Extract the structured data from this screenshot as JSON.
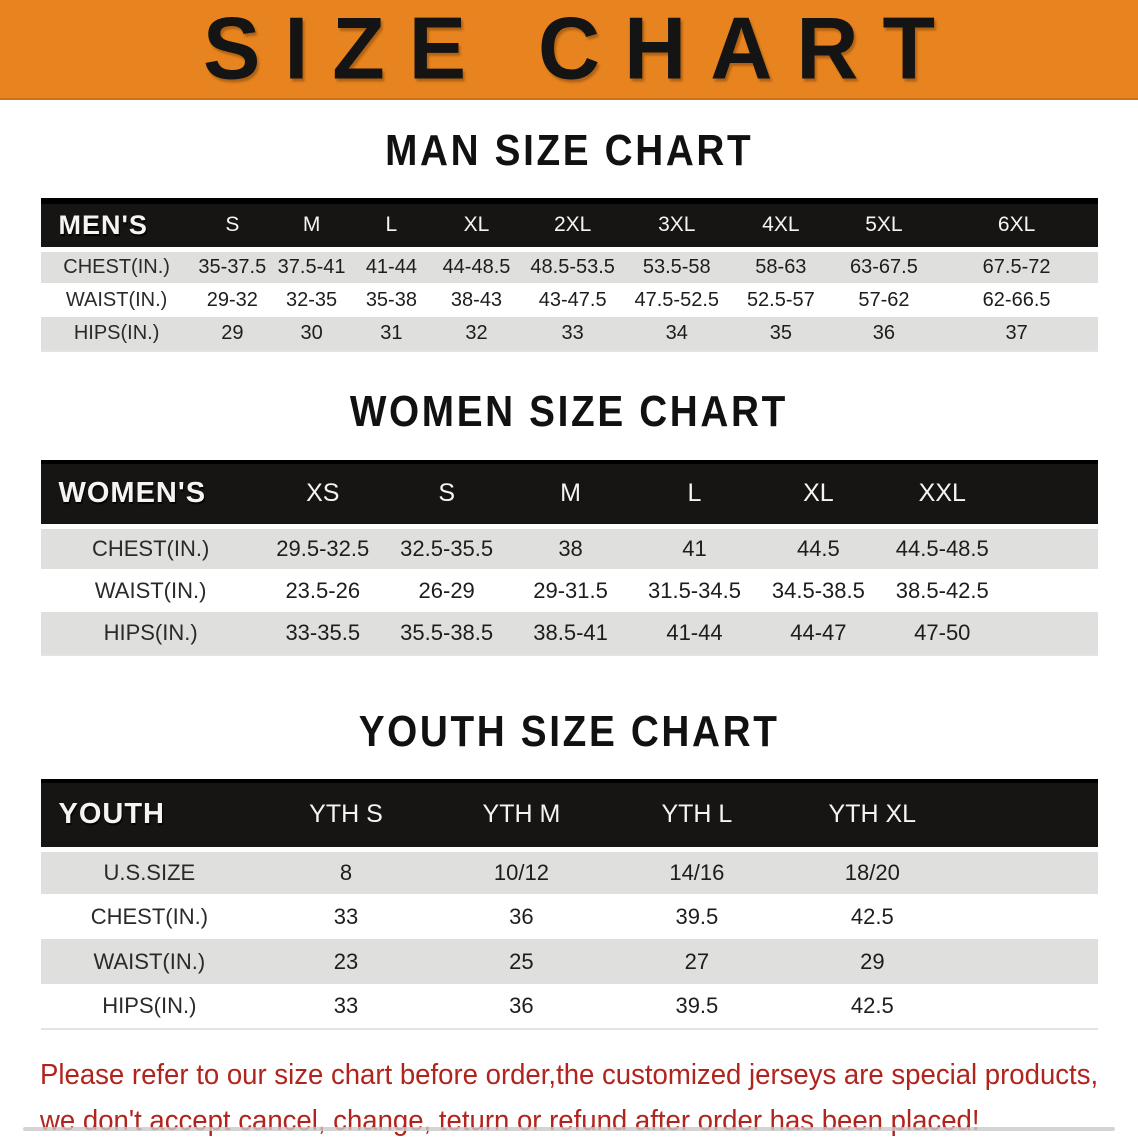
{
  "banner": {
    "title": "SIZE CHART"
  },
  "colors": {
    "banner_orange": "#E8841F",
    "header_black": "#171513",
    "row_gray": "#DFDFDD",
    "disclaimer_red": "#B1241E"
  },
  "sections": [
    {
      "heading": "MAN SIZE CHART",
      "table": {
        "header": [
          "MEN'S",
          "S",
          "M",
          "L",
          "XL",
          "2XL",
          "3XL",
          "4XL",
          "5XL",
          "6XL"
        ],
        "rows": [
          {
            "label": "CHEST(IN.)",
            "values": [
              "35-37.5",
              "37.5-41",
              "41-44",
              "44-48.5",
              "48.5-53.5",
              "53.5-58",
              "58-63",
              "63-67.5",
              "67.5-72"
            ]
          },
          {
            "label": "WAIST(IN.)",
            "values": [
              "29-32",
              "32-35",
              "35-38",
              "38-43",
              "43-47.5",
              "47.5-52.5",
              "52.5-57",
              "57-62",
              "62-66.5"
            ]
          },
          {
            "label": "HIPS(IN.)",
            "values": [
              "29",
              "30",
              "31",
              "32",
              "33",
              "34",
              "35",
              "36",
              "37"
            ]
          }
        ]
      }
    },
    {
      "heading": "WOMEN SIZE CHART",
      "table": {
        "header": [
          "WOMEN'S",
          "XS",
          "S",
          "M",
          "L",
          "XL",
          "XXL"
        ],
        "rows": [
          {
            "label": "CHEST(IN.)",
            "values": [
              "29.5-32.5",
              "32.5-35.5",
              "38",
              "41",
              "44.5",
              "44.5-48.5"
            ]
          },
          {
            "label": "WAIST(IN.)",
            "values": [
              "23.5-26",
              "26-29",
              "29-31.5",
              "31.5-34.5",
              "34.5-38.5",
              "38.5-42.5"
            ]
          },
          {
            "label": "HIPS(IN.)",
            "values": [
              "33-35.5",
              "35.5-38.5",
              "38.5-41",
              "41-44",
              "44-47",
              "47-50"
            ]
          }
        ]
      }
    },
    {
      "heading": "YOUTH SIZE CHART",
      "table": {
        "header": [
          "YOUTH",
          "YTH S",
          "YTH M",
          "YTH L",
          "YTH XL"
        ],
        "rows": [
          {
            "label": "U.S.SIZE",
            "values": [
              "8",
              "10/12",
              "14/16",
              "18/20"
            ]
          },
          {
            "label": "CHEST(IN.)",
            "values": [
              "33",
              "36",
              "39.5",
              "42.5"
            ]
          },
          {
            "label": "WAIST(IN.)",
            "values": [
              "23",
              "25",
              "27",
              "29"
            ]
          },
          {
            "label": "HIPS(IN.)",
            "values": [
              "33",
              "36",
              "39.5",
              "42.5"
            ]
          }
        ]
      }
    }
  ],
  "disclaimer": {
    "line1": "Please refer to our size chart before order,the customized jerseys are special products,",
    "line2": "we don't accept cancel, change, teturn or refund after order has been placed!"
  }
}
